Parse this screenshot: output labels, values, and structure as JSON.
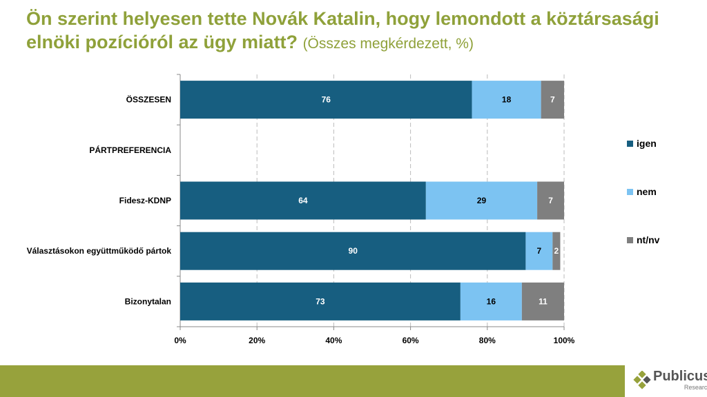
{
  "title": {
    "main": "Ön szerint helyesen tette Novák Katalin, hogy lemondott a köztársasági elnöki pozícióról az ügy miatt?",
    "sub": "(Összes megkérdezett, %)"
  },
  "chart_data": {
    "type": "bar",
    "stacked": true,
    "orientation": "horizontal",
    "categories": [
      "ÖSSZESEN",
      "PÁRTPREFERENCIA",
      "Fidesz-KDNP",
      "Választásokon együttműködő pártok",
      "Bizonytalan"
    ],
    "series": [
      {
        "name": "igen",
        "color": "#175e80",
        "label_color": "#ffffff",
        "values": [
          76,
          null,
          64,
          90,
          73
        ]
      },
      {
        "name": "nem",
        "color": "#7cc3f2",
        "label_color": "#000000",
        "values": [
          18,
          null,
          29,
          7,
          16
        ]
      },
      {
        "name": "nt/nv",
        "color": "#7f7f7f",
        "label_color": "#ffffff",
        "values": [
          7,
          null,
          7,
          2,
          11
        ]
      }
    ],
    "xlim": [
      0,
      100
    ],
    "xticks": [
      "0%",
      "20%",
      "40%",
      "60%",
      "80%",
      "100%"
    ],
    "grid": true,
    "legend": "right"
  },
  "logo": {
    "name": "Publicus",
    "sub": "Research"
  }
}
